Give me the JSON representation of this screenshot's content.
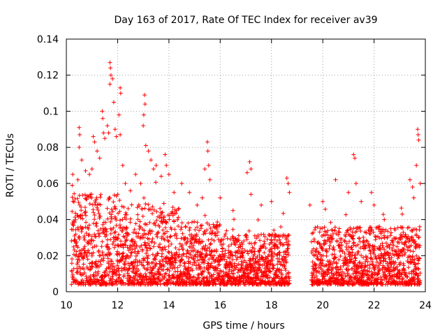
{
  "chart_data": {
    "type": "scatter",
    "title": "Day 163 of 2017, Rate Of TEC Index for receiver av39",
    "xlabel": "GPS time / hours",
    "ylabel": "ROTI / TECUs",
    "xlim": [
      10,
      24
    ],
    "ylim": [
      0,
      0.14
    ],
    "xticks": [
      10,
      12,
      14,
      16,
      18,
      20,
      22,
      24
    ],
    "xtick_labels": [
      "10",
      "12",
      "14",
      "16",
      "18",
      "20",
      "22",
      "24"
    ],
    "yticks": [
      0,
      0.02,
      0.04,
      0.06,
      0.08,
      0.1,
      0.12,
      0.14
    ],
    "ytick_labels": [
      "0",
      "0.02",
      "0.04",
      "0.06",
      "0.08",
      "0.1",
      "0.12",
      "0.14"
    ],
    "grid": true,
    "marker": "+",
    "series_color": "#ff0000",
    "data_gap": [
      18.7,
      19.55
    ],
    "series": [
      {
        "name": "ROTI",
        "points": [
          [
            10.25,
            0.065
          ],
          [
            10.45,
            0.062
          ],
          [
            10.5,
            0.091
          ],
          [
            10.52,
            0.087
          ],
          [
            10.5,
            0.08
          ],
          [
            10.6,
            0.073
          ],
          [
            10.75,
            0.067
          ],
          [
            10.9,
            0.065
          ],
          [
            11.0,
            0.068
          ],
          [
            11.05,
            0.086
          ],
          [
            11.1,
            0.083
          ],
          [
            11.2,
            0.078
          ],
          [
            11.3,
            0.074
          ],
          [
            11.4,
            0.1
          ],
          [
            11.42,
            0.096
          ],
          [
            11.45,
            0.088
          ],
          [
            11.5,
            0.085
          ],
          [
            11.6,
            0.092
          ],
          [
            11.65,
            0.088
          ],
          [
            11.7,
            0.127
          ],
          [
            11.72,
            0.124
          ],
          [
            11.74,
            0.12
          ],
          [
            11.7,
            0.115
          ],
          [
            11.8,
            0.118
          ],
          [
            11.85,
            0.105
          ],
          [
            11.9,
            0.09
          ],
          [
            11.95,
            0.086
          ],
          [
            12.05,
            0.098
          ],
          [
            12.1,
            0.113
          ],
          [
            12.12,
            0.11
          ],
          [
            12.1,
            0.087
          ],
          [
            12.2,
            0.07
          ],
          [
            12.3,
            0.06
          ],
          [
            12.5,
            0.056
          ],
          [
            12.7,
            0.065
          ],
          [
            12.9,
            0.06
          ],
          [
            13.0,
            0.092
          ],
          [
            13.02,
            0.098
          ],
          [
            13.05,
            0.109
          ],
          [
            13.07,
            0.104
          ],
          [
            13.1,
            0.081
          ],
          [
            13.2,
            0.078
          ],
          [
            13.3,
            0.073
          ],
          [
            13.4,
            0.068
          ],
          [
            13.5,
            0.07
          ],
          [
            13.7,
            0.064
          ],
          [
            13.85,
            0.076
          ],
          [
            13.9,
            0.07
          ],
          [
            14.0,
            0.065
          ],
          [
            14.2,
            0.055
          ],
          [
            14.5,
            0.06
          ],
          [
            14.8,
            0.055
          ],
          [
            15.1,
            0.048
          ],
          [
            15.3,
            0.052
          ],
          [
            15.4,
            0.068
          ],
          [
            15.5,
            0.083
          ],
          [
            15.52,
            0.078
          ],
          [
            15.55,
            0.07
          ],
          [
            15.6,
            0.062
          ],
          [
            16.0,
            0.052
          ],
          [
            16.5,
            0.045
          ],
          [
            17.05,
            0.066
          ],
          [
            17.15,
            0.072
          ],
          [
            17.2,
            0.068
          ],
          [
            17.2,
            0.054
          ],
          [
            17.6,
            0.048
          ],
          [
            18.0,
            0.05
          ],
          [
            18.6,
            0.063
          ],
          [
            18.65,
            0.06
          ],
          [
            18.7,
            0.055
          ],
          [
            19.5,
            0.048
          ],
          [
            20.0,
            0.05
          ],
          [
            20.5,
            0.062
          ],
          [
            21.0,
            0.055
          ],
          [
            21.2,
            0.076
          ],
          [
            21.25,
            0.074
          ],
          [
            21.3,
            0.06
          ],
          [
            21.5,
            0.05
          ],
          [
            21.9,
            0.055
          ],
          [
            22.0,
            0.048
          ],
          [
            22.4,
            0.04
          ],
          [
            22.8,
            0.035
          ],
          [
            23.1,
            0.043
          ],
          [
            23.4,
            0.062
          ],
          [
            23.5,
            0.058
          ],
          [
            23.55,
            0.052
          ],
          [
            23.65,
            0.07
          ],
          [
            23.7,
            0.09
          ],
          [
            23.72,
            0.087
          ],
          [
            23.74,
            0.084
          ],
          [
            23.8,
            0.06
          ]
        ]
      }
    ]
  }
}
